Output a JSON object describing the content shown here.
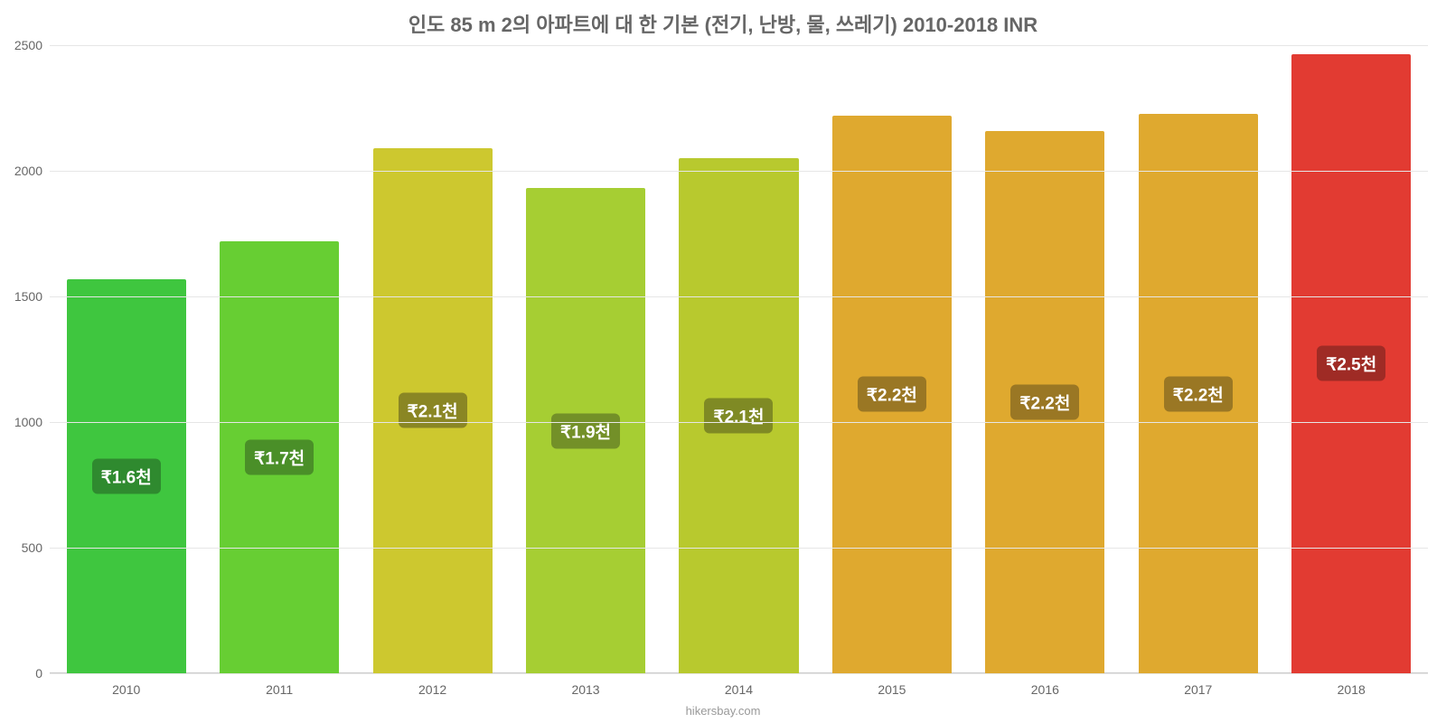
{
  "chart": {
    "type": "bar",
    "title": "인도 85 m 2의 아파트에 대 한 기본 (전기, 난방, 물, 쓰레기) 2010-2018 INR",
    "title_fontsize": 22,
    "title_color": "#666666",
    "source": "hikersbay.com",
    "source_color": "#999999",
    "background_color": "#ffffff",
    "grid_color": "#e6e6e6",
    "axis_label_color": "#666666",
    "axis_fontsize": 14,
    "ylim": [
      0,
      2500
    ],
    "ytick_step": 500,
    "yticks": [
      0,
      500,
      1000,
      1500,
      2000,
      2500
    ],
    "bar_width_pct": 78,
    "bar_label_fontsize": 19,
    "categories": [
      "2010",
      "2011",
      "2012",
      "2013",
      "2014",
      "2015",
      "2016",
      "2017",
      "2018"
    ],
    "values": [
      1570,
      1720,
      2090,
      1930,
      2050,
      2220,
      2160,
      2225,
      2465
    ],
    "value_labels": [
      "₩1.6천",
      "₩1.7천",
      "₩2.1천",
      "₩1.9천",
      "₩2.1천",
      "₩2.2천",
      "₩2.2천",
      "₩2.2천",
      "₩2.5천"
    ],
    "value_labels_real": [
      "₹1.6천",
      "₹1.7천",
      "₹2.1천",
      "₹1.9천",
      "₹2.1천",
      "₹2.2천",
      "₹2.2천",
      "₹2.2천",
      "₹2.5천"
    ],
    "bar_colors": [
      "#3fc63f",
      "#67ce33",
      "#cdc82f",
      "#a6ce33",
      "#b8c92e",
      "#dfa92f",
      "#dfa92f",
      "#dfa92f",
      "#e23b32"
    ],
    "label_bg_colors": [
      "#2f8a2f",
      "#4a8f28",
      "#8a8624",
      "#739028",
      "#7f8a24",
      "#9a7724",
      "#9a7724",
      "#9a7724",
      "#9f2b25"
    ]
  }
}
